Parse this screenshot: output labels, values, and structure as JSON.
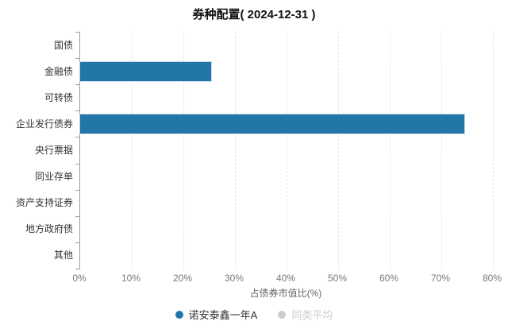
{
  "title": "券种配置( 2024-12-31 )",
  "chart_data": {
    "type": "bar",
    "orientation": "horizontal",
    "title": "券种配置( 2024-12-31 )",
    "categories": [
      "国债",
      "金融债",
      "可转债",
      "企业发行债券",
      "央行票据",
      "同业存单",
      "资产支持证券",
      "地方政府债",
      "其他"
    ],
    "series": [
      {
        "name": "诺安泰鑫一年A",
        "color": "#2377A6",
        "active": true,
        "values": [
          0,
          25.4,
          0,
          74.5,
          0,
          0,
          0,
          0,
          0
        ]
      },
      {
        "name": "同类平均",
        "color": "#cccccc",
        "active": false,
        "values": []
      }
    ],
    "xlabel": "占债券市值比(%)",
    "ylabel": "",
    "xlim": [
      0,
      80
    ],
    "x_tick_step": 10,
    "x_tick_labels": [
      "0%",
      "10%",
      "20%",
      "30%",
      "40%",
      "50%",
      "60%",
      "70%",
      "80%"
    ],
    "grid": true,
    "gridline_style": "dashed",
    "legend_position": "bottom"
  },
  "colors": {
    "bar_primary": "#2377A6",
    "inactive_legend": "#cccccc",
    "axis_line": "#9e9e9e",
    "gridline": "#e4e4e4",
    "y_label_text": "#333333",
    "x_label_text": "#777777",
    "title_text": "#111111"
  }
}
